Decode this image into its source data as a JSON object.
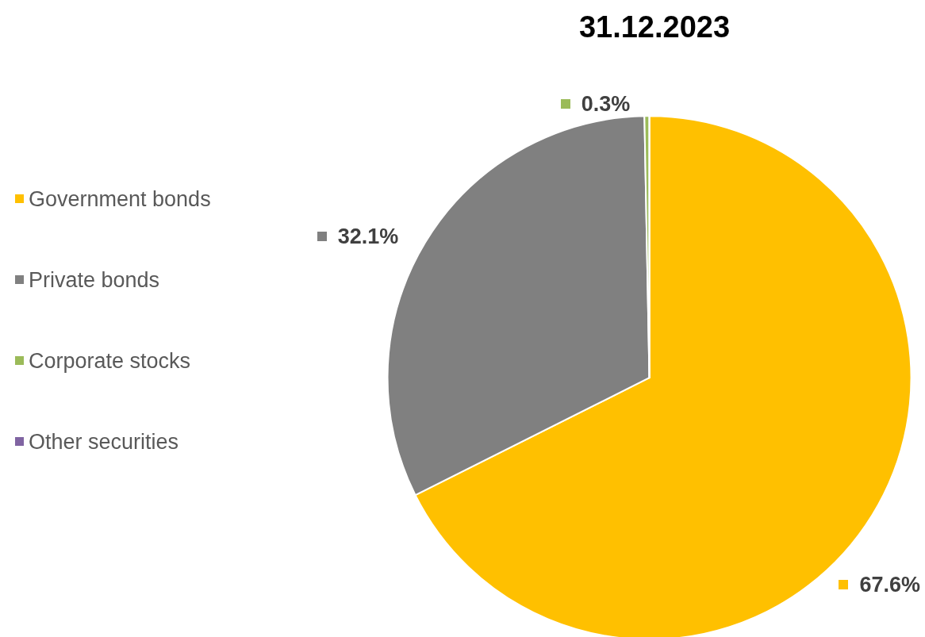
{
  "chart_data": {
    "type": "pie",
    "title": "31.12.2023",
    "categories": [
      "Government bonds",
      "Private bonds",
      "Corporate stocks",
      "Other securities"
    ],
    "values": [
      67.6,
      32.1,
      0.3,
      0
    ],
    "colors": [
      "#ffc000",
      "#808080",
      "#9bbb59",
      "#8064a2"
    ],
    "value_labels": [
      "67.6%",
      "32.1%",
      "0.3%",
      null
    ],
    "legend": "left"
  }
}
